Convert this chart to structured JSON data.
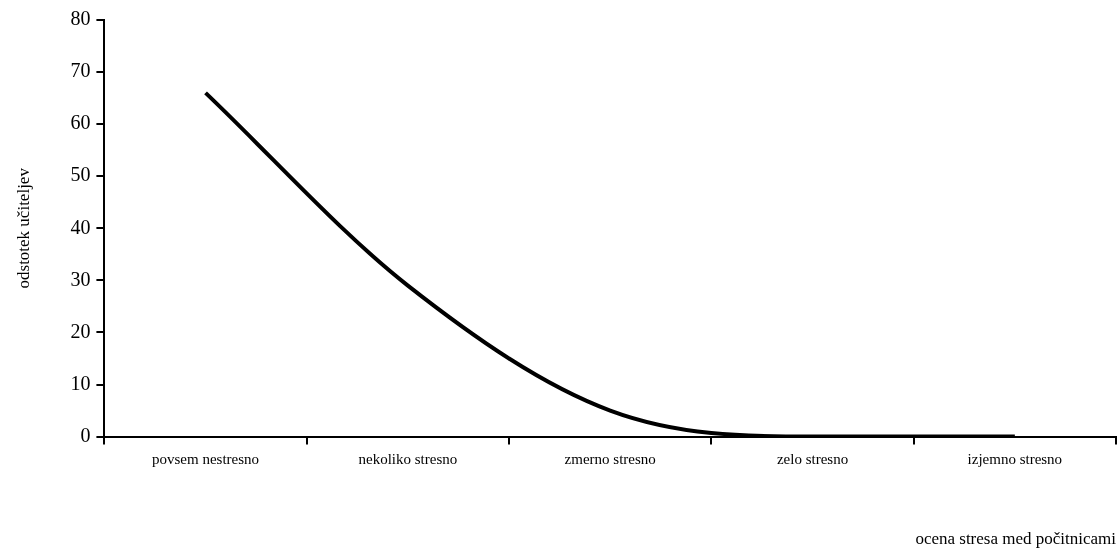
{
  "chart_data": {
    "type": "line",
    "categories": [
      "povsem nestresno",
      "nekoliko stresno",
      "zmerno stresno",
      "zelo stresno",
      "izjemno stresno"
    ],
    "series": [
      {
        "color": "#000000",
        "values": [
          66,
          29,
          5,
          0,
          0
        ]
      }
    ],
    "xlabel": "ocena stresa med počitnicami",
    "ylabel": "odstotek učiteljev",
    "ylim": [
      0,
      80
    ],
    "yticks": [
      0,
      10,
      20,
      30,
      40,
      50,
      60,
      70,
      80
    ],
    "grid": false,
    "legend": false,
    "marker": "none",
    "line_style": "solid"
  }
}
